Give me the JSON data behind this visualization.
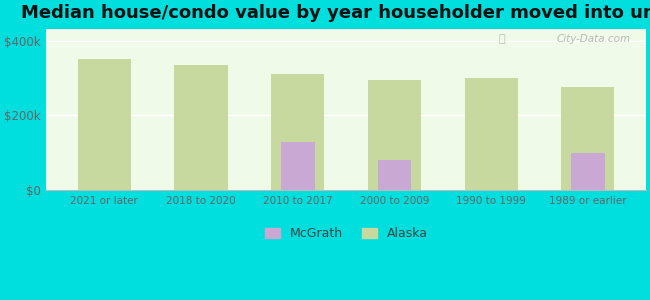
{
  "title": "Median house/condo value by year householder moved into unit",
  "categories": [
    "2021 or later",
    "2018 to 2020",
    "2010 to 2017",
    "2000 to 2009",
    "1990 to 1999",
    "1989 or earlier"
  ],
  "alaska_values": [
    350000,
    335000,
    310000,
    295000,
    300000,
    275000
  ],
  "mcgrath_values": [
    0,
    0,
    130000,
    80000,
    0,
    100000
  ],
  "alaska_color": "#c8d9a0",
  "mcgrath_color": "#c9a8d4",
  "background_color_center": "#f5fff5",
  "background_color_edge": "#d8f0c8",
  "outer_background": "#00dede",
  "title_fontsize": 13,
  "ylabel_ticks": [
    0,
    200000,
    400000
  ],
  "ylabel_labels": [
    "$0",
    "$200k",
    "$400k"
  ],
  "ylim": [
    0,
    430000
  ],
  "watermark": "City-Data.com",
  "legend_mcgrath": "McGrath",
  "legend_alaska": "Alaska",
  "alaska_bar_width": 0.55,
  "mcgrath_bar_width": 0.35
}
